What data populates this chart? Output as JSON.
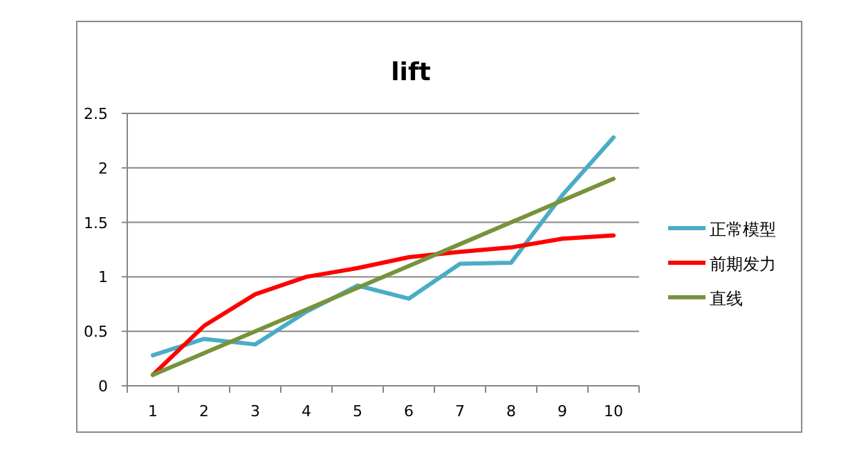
{
  "chart_data": {
    "type": "line",
    "title": "lift",
    "categories": [
      "1",
      "2",
      "3",
      "4",
      "5",
      "6",
      "7",
      "8",
      "9",
      "10"
    ],
    "series": [
      {
        "name": "正常模型",
        "color": "#4bacc6",
        "values": [
          0.28,
          0.43,
          0.38,
          0.68,
          0.92,
          0.8,
          1.12,
          1.13,
          1.75,
          2.28
        ]
      },
      {
        "name": "前期发力",
        "color": "#ff0000",
        "values": [
          0.1,
          0.55,
          0.84,
          1.0,
          1.08,
          1.18,
          1.23,
          1.27,
          1.35,
          1.38
        ]
      },
      {
        "name": "直线",
        "color": "#77933c",
        "values": [
          0.1,
          0.3,
          0.5,
          0.7,
          0.9,
          1.1,
          1.3,
          1.5,
          1.7,
          1.9
        ]
      }
    ],
    "ylim": [
      0,
      2.5
    ],
    "yticks": [
      0,
      0.5,
      1,
      1.5,
      2,
      2.5
    ],
    "grid": "y",
    "legend": "right",
    "marker": "none",
    "line_style": "solid"
  }
}
